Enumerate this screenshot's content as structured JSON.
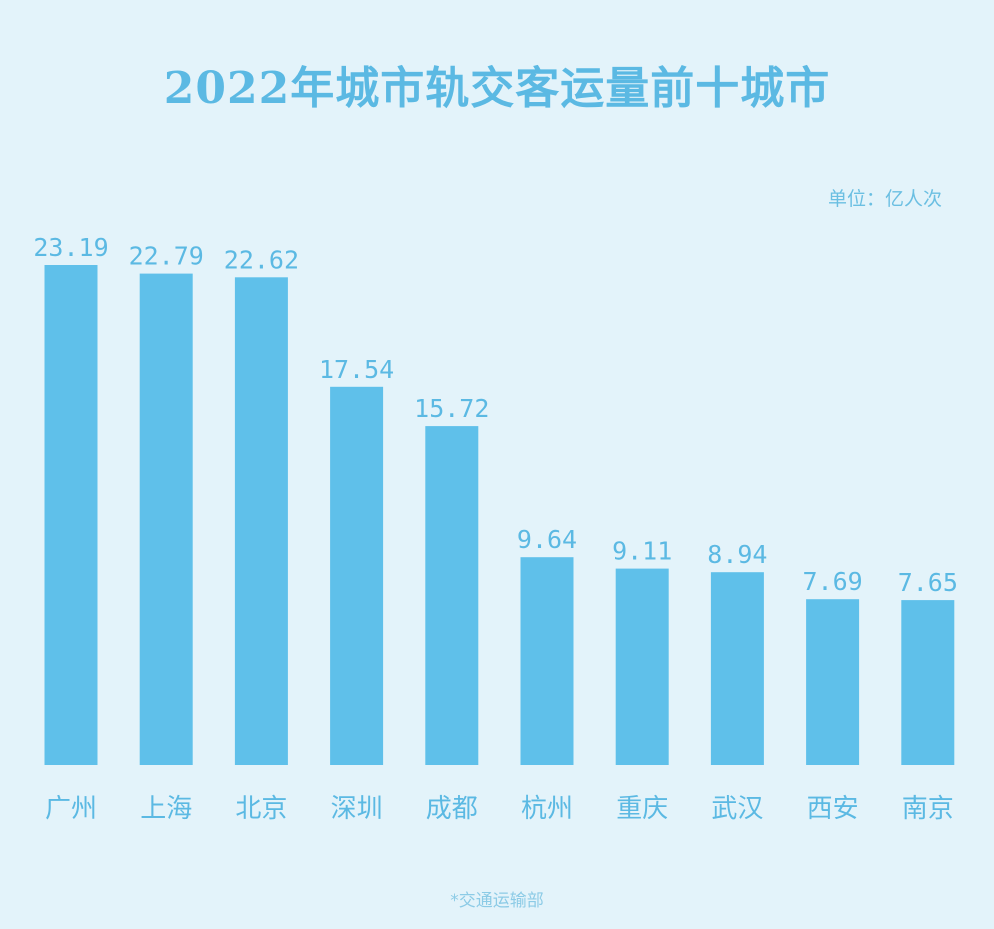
{
  "title": "2022年城市轨交客运量前十城市",
  "unit_label": "单位：亿人次",
  "source": "*交通运输部",
  "colors": {
    "background": "#e3f3fa",
    "bar": "#5fc0ea",
    "text": "#5bb9e3"
  },
  "chart_data": {
    "type": "bar",
    "title": "2022年城市轨交客运量前十城市",
    "xlabel": "",
    "ylabel": "",
    "unit": "单位：亿人次",
    "categories": [
      "广州",
      "上海",
      "北京",
      "深圳",
      "成都",
      "杭州",
      "重庆",
      "武汉",
      "西安",
      "南京"
    ],
    "values": [
      23.19,
      22.79,
      22.62,
      17.54,
      15.72,
      9.64,
      9.11,
      8.94,
      7.69,
      7.65
    ],
    "value_labels": [
      "23.19",
      "22.79",
      "22.62",
      "17.54",
      "15.72",
      "9.64",
      "9.11",
      "8.94",
      "7.69",
      "7.65"
    ],
    "ylim": [
      0,
      23.19
    ],
    "grid": false,
    "legend": "none"
  }
}
